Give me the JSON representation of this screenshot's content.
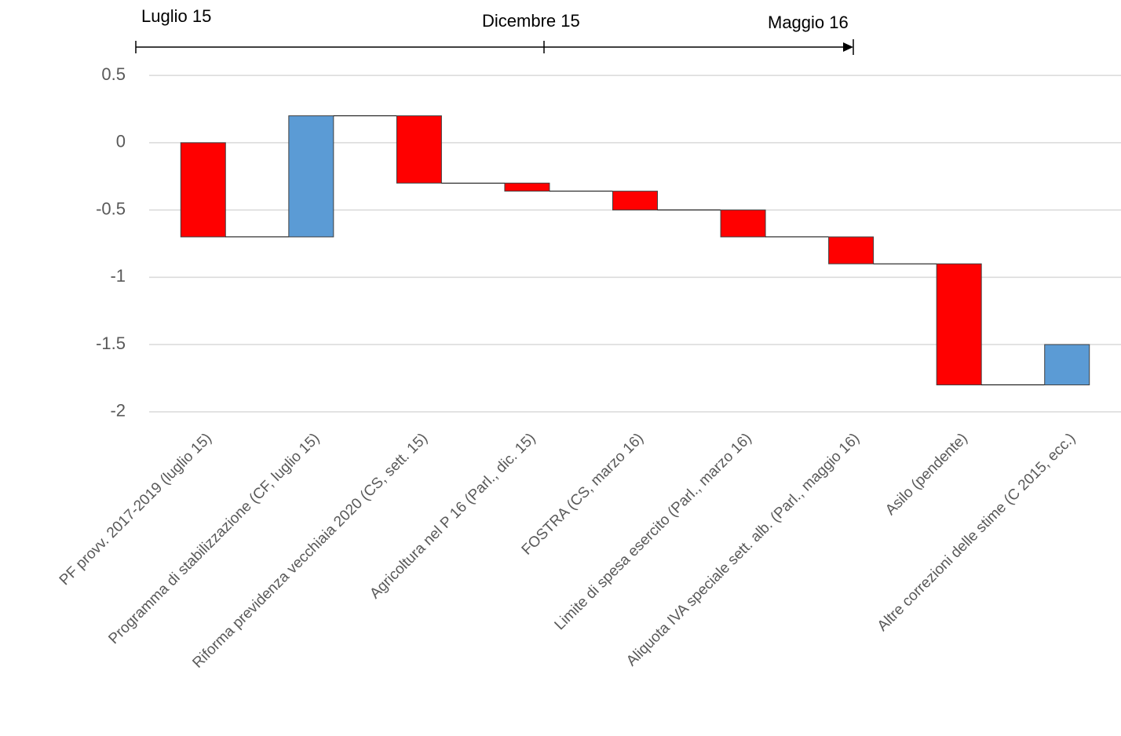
{
  "chart_data": {
    "type": "waterfall",
    "timeline": [
      "Luglio 15",
      "Dicembre 15",
      "Maggio 16"
    ],
    "categories": [
      "PF provv. 2017-2019 (luglio 15)",
      "Programma di stabilizzazione (CF, luglio 15)",
      "Riforma previdenza vecchiaia 2020 (CS, sett. 15)",
      "Agricoltura nel P 16 (Parl., dic. 15)",
      "FOSTRA (CS, marzo 16)",
      "Limite di spesa esercito (Parl., marzo 16)",
      "Aliquota IVA speciale sett. alb. (Parl., maggio 16)",
      "Asilo (pendente)",
      "Altre correzioni delle stime (C 2015, ecc.)"
    ],
    "values": [
      -0.7,
      0.9,
      -0.5,
      -0.06,
      -0.14,
      -0.2,
      -0.2,
      -0.9,
      0.3
    ],
    "increase_color": "#5b9bd5",
    "decrease_color": "#ff0000",
    "ylim": [
      -2.1,
      0.6
    ],
    "yticks": [
      0.5,
      0,
      -0.5,
      -1,
      -1.5,
      -2
    ],
    "grid": true
  }
}
